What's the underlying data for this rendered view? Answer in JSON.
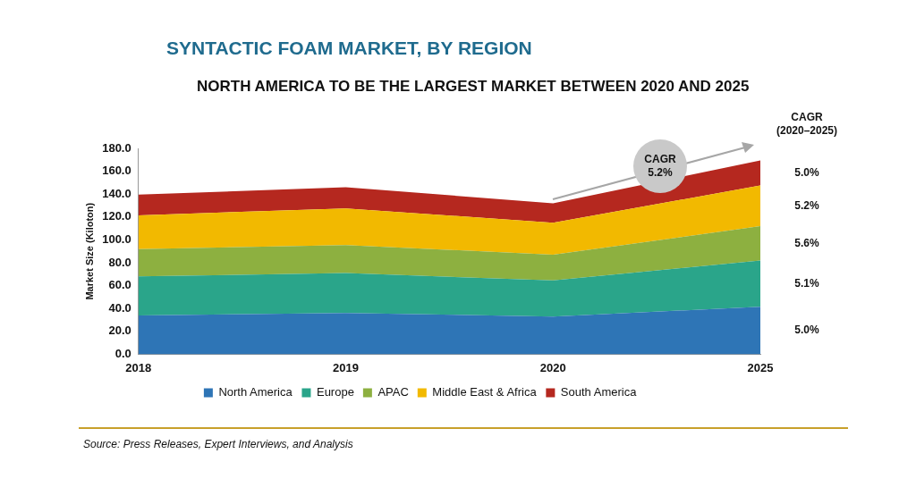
{
  "chart_data": {
    "type": "area",
    "title": "SYNTACTIC FOAM MARKET, BY REGION",
    "subtitle": "NORTH AMERICA TO BE THE LARGEST MARKET BETWEEN 2020 AND 2025",
    "ylabel": "Market Size (Kiloton)",
    "categories": [
      "2018",
      "2019",
      "2020",
      "2025"
    ],
    "series": [
      {
        "name": "North America",
        "color": "#2e75b6",
        "values": [
          34,
          36,
          33,
          41.5
        ]
      },
      {
        "name": "Europe",
        "color": "#2aa58a",
        "values": [
          34,
          35,
          31.5,
          40.5
        ]
      },
      {
        "name": "APAC",
        "color": "#8db040",
        "values": [
          24,
          24.5,
          22.5,
          30
        ]
      },
      {
        "name": "Middle East & Africa",
        "color": "#f2b900",
        "values": [
          29.5,
          32,
          28,
          35.5
        ]
      },
      {
        "name": "South America",
        "color": "#b5281f",
        "values": [
          18,
          18.5,
          17,
          22
        ]
      }
    ],
    "stacked": true,
    "ylim": [
      0,
      180
    ],
    "yticks": [
      {
        "value": 0,
        "label": "0.0"
      },
      {
        "value": 20,
        "label": "20.0"
      },
      {
        "value": 40,
        "label": "40.0"
      },
      {
        "value": 60,
        "label": "60.0"
      },
      {
        "value": 80,
        "label": "80.0"
      },
      {
        "value": 100,
        "label": "100.0"
      },
      {
        "value": 120,
        "label": "120.0"
      },
      {
        "value": 140,
        "label": "140.0"
      },
      {
        "value": 160,
        "label": "160.0"
      },
      {
        "value": 180,
        "label": "180.0"
      }
    ],
    "grid": false,
    "legend": "bottom",
    "annotations": [
      "CAGR\n(2020–2025)",
      "CAGR\n5.2%",
      "5.0%",
      "5.1%",
      "5.6%",
      "5.2%",
      "5.0%",
      "Source: Press Releases, Expert Interviews, and Analysis"
    ]
  }
}
